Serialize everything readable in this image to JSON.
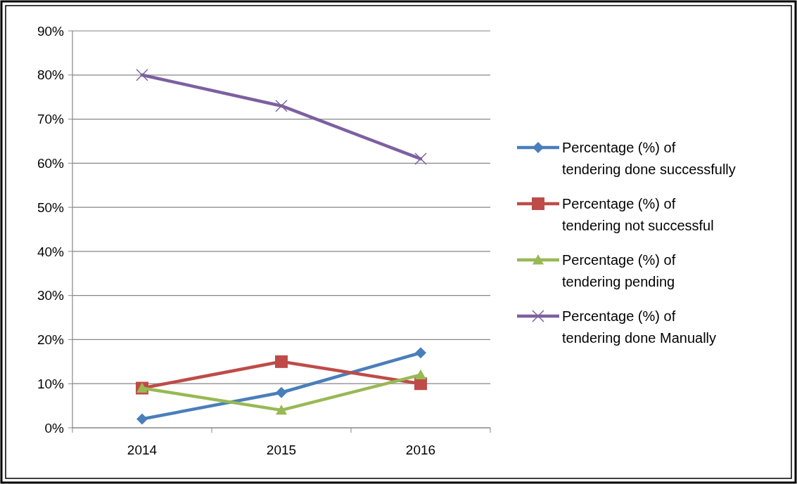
{
  "chart_data": {
    "type": "line",
    "categories": [
      "2014",
      "2015",
      "2016"
    ],
    "series": [
      {
        "name": "Percentage (%) of tendering done successfully",
        "color": "#4a7ebb",
        "marker": "diamond",
        "values": [
          2,
          8,
          17
        ]
      },
      {
        "name": "Percentage (%) of tendering not successful",
        "color": "#be4b48",
        "marker": "square",
        "values": [
          9,
          15,
          10
        ]
      },
      {
        "name": "Percentage (%) of tendering pending",
        "color": "#98b954",
        "marker": "triangle",
        "values": [
          9,
          4,
          12
        ]
      },
      {
        "name": "Percentage (%) of tendering done Manually",
        "color": "#7d60a0",
        "marker": "cross",
        "values": [
          80,
          73,
          61
        ]
      }
    ],
    "ylim": [
      0,
      90
    ],
    "yticks": [
      {
        "value": 0,
        "label": "0%"
      },
      {
        "value": 10,
        "label": "10%"
      },
      {
        "value": 20,
        "label": "20%"
      },
      {
        "value": 30,
        "label": "30%"
      },
      {
        "value": 40,
        "label": "40%"
      },
      {
        "value": 50,
        "label": "50%"
      },
      {
        "value": 60,
        "label": "60%"
      },
      {
        "value": 70,
        "label": "70%"
      },
      {
        "value": 80,
        "label": "80%"
      },
      {
        "value": 90,
        "label": "90%"
      }
    ],
    "grid": "y",
    "legend": "right",
    "line_style": "solid"
  }
}
